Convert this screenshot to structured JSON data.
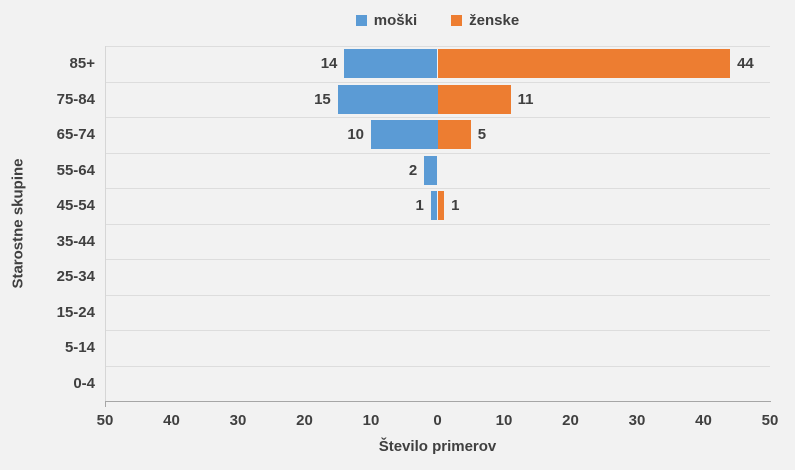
{
  "colors": {
    "male": "#5B9BD5",
    "female": "#ED7D31",
    "background": "#F2F2F2",
    "gridline": "#DDDDDD",
    "axis_line": "#A6A6A6",
    "text": "#404040"
  },
  "legend": {
    "items": [
      {
        "label": "moški",
        "color": "#5B9BD5"
      },
      {
        "label": "ženske",
        "color": "#ED7D31"
      }
    ],
    "position": "top-center"
  },
  "chart_data": {
    "type": "bar",
    "variant": "horizontal-diverging-pyramid",
    "title": "",
    "xlabel": "Število primerov",
    "ylabel": "Starostne skupine",
    "categories": [
      "85+",
      "75-84",
      "65-74",
      "55-64",
      "45-54",
      "35-44",
      "25-34",
      "15-24",
      "5-14",
      "0-4"
    ],
    "series": [
      {
        "name": "moški",
        "side": "left",
        "color": "#5B9BD5",
        "values": [
          14,
          15,
          10,
          2,
          1,
          0,
          0,
          0,
          0,
          0
        ]
      },
      {
        "name": "ženske",
        "side": "right",
        "color": "#ED7D31",
        "values": [
          44,
          11,
          5,
          0,
          1,
          0,
          0,
          0,
          0,
          0
        ]
      }
    ],
    "x_tick_labels": [
      "50",
      "40",
      "30",
      "20",
      "10",
      "0",
      "10",
      "20",
      "30",
      "40",
      "50"
    ],
    "x_tick_values": [
      -50,
      -40,
      -30,
      -20,
      -10,
      0,
      10,
      20,
      30,
      40,
      50
    ],
    "xlim": [
      -50,
      50
    ],
    "grid": "horizontal-row-boundaries",
    "data_labels": "outside-end, hidden when value is 0",
    "legend_position": "top-center"
  }
}
